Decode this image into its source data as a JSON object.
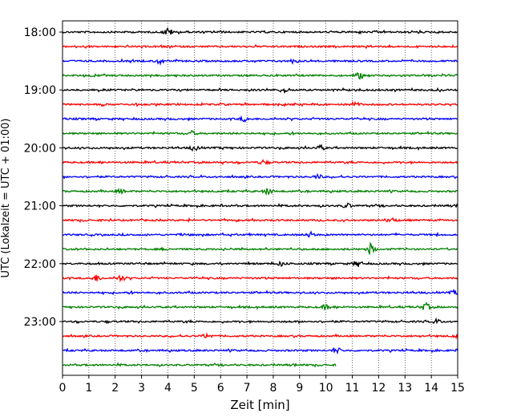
{
  "chart_data": {
    "type": "line",
    "title": "",
    "xlabel": "Zeit  [min]",
    "ylabel": "UTC (Lokalzeit = UTC + 01:00)",
    "xlim": [
      0,
      15
    ],
    "x_ticks": [
      0,
      1,
      2,
      3,
      4,
      5,
      6,
      7,
      8,
      9,
      10,
      11,
      12,
      13,
      14,
      15
    ],
    "y_tick_labels": [
      "18:00",
      "19:00",
      "20:00",
      "21:00",
      "22:00",
      "23:00"
    ],
    "grid": "vertical dotted at each minute",
    "trace_interval_min": 15,
    "line_colors": [
      "#000000",
      "#ff0000",
      "#0000ff",
      "#008000"
    ],
    "traces": [
      {
        "start": "18:00",
        "color": "#000000",
        "end_min": 15,
        "events": [
          {
            "min": 4.0,
            "amp": 2.4
          }
        ]
      },
      {
        "start": "18:15",
        "color": "#ff0000",
        "end_min": 15,
        "events": []
      },
      {
        "start": "18:30",
        "color": "#0000ff",
        "end_min": 15,
        "events": [
          {
            "min": 3.7,
            "amp": 1.6
          },
          {
            "min": 8.8,
            "amp": 1.4
          }
        ]
      },
      {
        "start": "18:45",
        "color": "#008000",
        "end_min": 15,
        "events": [
          {
            "min": 11.3,
            "amp": 2.0
          }
        ]
      },
      {
        "start": "19:00",
        "color": "#000000",
        "end_min": 15,
        "events": [
          {
            "min": 8.4,
            "amp": 1.5
          }
        ]
      },
      {
        "start": "19:15",
        "color": "#ff0000",
        "end_min": 15,
        "events": [
          {
            "min": 11.1,
            "amp": 1.6
          }
        ]
      },
      {
        "start": "19:30",
        "color": "#0000ff",
        "end_min": 15,
        "events": [
          {
            "min": 6.9,
            "amp": 1.4
          }
        ]
      },
      {
        "start": "19:45",
        "color": "#008000",
        "end_min": 15,
        "events": [
          {
            "min": 4.9,
            "amp": 1.4
          }
        ]
      },
      {
        "start": "20:00",
        "color": "#000000",
        "end_min": 15,
        "events": [
          {
            "min": 5.0,
            "amp": 1.6
          },
          {
            "min": 9.8,
            "amp": 1.4
          }
        ]
      },
      {
        "start": "20:15",
        "color": "#ff0000",
        "end_min": 15,
        "events": [
          {
            "min": 7.6,
            "amp": 1.3
          }
        ]
      },
      {
        "start": "20:30",
        "color": "#0000ff",
        "end_min": 15,
        "events": [
          {
            "min": 9.7,
            "amp": 1.3
          }
        ]
      },
      {
        "start": "20:45",
        "color": "#008000",
        "end_min": 15,
        "events": [
          {
            "min": 7.8,
            "amp": 2.0
          },
          {
            "min": 2.2,
            "amp": 1.3
          }
        ]
      },
      {
        "start": "21:00",
        "color": "#000000",
        "end_min": 15,
        "events": [
          {
            "min": 10.8,
            "amp": 1.5
          }
        ]
      },
      {
        "start": "21:15",
        "color": "#ff0000",
        "end_min": 15,
        "events": [
          {
            "min": 12.5,
            "amp": 1.4
          }
        ]
      },
      {
        "start": "21:30",
        "color": "#0000ff",
        "end_min": 15,
        "events": [
          {
            "min": 9.4,
            "amp": 1.6
          }
        ]
      },
      {
        "start": "21:45",
        "color": "#008000",
        "end_min": 15,
        "events": [
          {
            "min": 11.7,
            "amp": 3.6
          }
        ]
      },
      {
        "start": "22:00",
        "color": "#000000",
        "end_min": 15,
        "events": [
          {
            "min": 11.2,
            "amp": 2.0
          },
          {
            "min": 8.3,
            "amp": 1.3
          }
        ]
      },
      {
        "start": "22:15",
        "color": "#ff0000",
        "end_min": 15,
        "events": [
          {
            "min": 1.3,
            "amp": 2.0
          },
          {
            "min": 2.2,
            "amp": 1.8
          }
        ]
      },
      {
        "start": "22:30",
        "color": "#0000ff",
        "end_min": 15,
        "events": [
          {
            "min": 14.9,
            "amp": 1.4
          }
        ]
      },
      {
        "start": "22:45",
        "color": "#008000",
        "end_min": 15,
        "events": [
          {
            "min": 13.8,
            "amp": 2.2
          },
          {
            "min": 10.0,
            "amp": 1.4
          }
        ]
      },
      {
        "start": "23:00",
        "color": "#000000",
        "end_min": 15,
        "events": [
          {
            "min": 14.2,
            "amp": 1.3
          }
        ]
      },
      {
        "start": "23:15",
        "color": "#ff0000",
        "end_min": 15,
        "events": [
          {
            "min": 5.5,
            "amp": 1.4
          },
          {
            "min": 15.0,
            "amp": 1.6
          }
        ]
      },
      {
        "start": "23:30",
        "color": "#0000ff",
        "end_min": 15,
        "events": [
          {
            "min": 10.4,
            "amp": 1.8
          }
        ]
      },
      {
        "start": "23:45",
        "color": "#008000",
        "end_min": 10.4,
        "events": []
      }
    ]
  }
}
